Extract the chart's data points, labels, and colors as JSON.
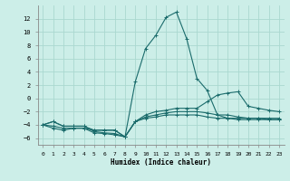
{
  "xlabel": "Humidex (Indice chaleur)",
  "background_color": "#cceee8",
  "line_color": "#1a6b6b",
  "grid_color": "#aad8d0",
  "x_values": [
    0,
    1,
    2,
    3,
    4,
    5,
    6,
    7,
    8,
    9,
    10,
    11,
    12,
    13,
    14,
    15,
    16,
    17,
    18,
    19,
    20,
    21,
    22,
    23
  ],
  "series": [
    [
      -4,
      -4.5,
      -4.8,
      -4.5,
      -4.5,
      -5.2,
      -5.3,
      -5.5,
      -5.8,
      2.5,
      7.5,
      9.5,
      12.2,
      13.0,
      9.0,
      3.0,
      1.2,
      -2.5,
      -3.0,
      -3.0,
      -3.0,
      -3.0,
      -3.0,
      -3.0
    ],
    [
      -4,
      -4.2,
      -4.5,
      -4.5,
      -4.5,
      -4.8,
      -4.8,
      -4.8,
      -5.8,
      -3.5,
      -2.5,
      -2.0,
      -1.8,
      -1.5,
      -1.5,
      -1.5,
      -0.5,
      0.5,
      0.8,
      1.0,
      -1.2,
      -1.5,
      -1.8,
      -2.0
    ],
    [
      -4,
      -3.5,
      -4.2,
      -4.2,
      -4.2,
      -5.0,
      -5.2,
      -5.3,
      -5.8,
      -3.5,
      -2.8,
      -2.5,
      -2.2,
      -2.0,
      -2.0,
      -2.0,
      -2.2,
      -2.5,
      -2.5,
      -2.8,
      -3.0,
      -3.0,
      -3.2,
      -3.2
    ],
    [
      -4,
      -3.5,
      -4.2,
      -4.2,
      -4.2,
      -4.8,
      -4.8,
      -4.8,
      -5.8,
      -3.5,
      -3.0,
      -2.8,
      -2.5,
      -2.5,
      -2.5,
      -2.5,
      -2.8,
      -3.0,
      -3.0,
      -3.2,
      -3.2,
      -3.2,
      -3.2,
      -3.2
    ]
  ],
  "ylim": [
    -7,
    14
  ],
  "xlim": [
    -0.5,
    23.5
  ],
  "yticks": [
    -6,
    -4,
    -2,
    0,
    2,
    4,
    6,
    8,
    10,
    12
  ],
  "xticks": [
    0,
    1,
    2,
    3,
    4,
    5,
    6,
    7,
    8,
    9,
    10,
    11,
    12,
    13,
    14,
    15,
    16,
    17,
    18,
    19,
    20,
    21,
    22,
    23
  ]
}
